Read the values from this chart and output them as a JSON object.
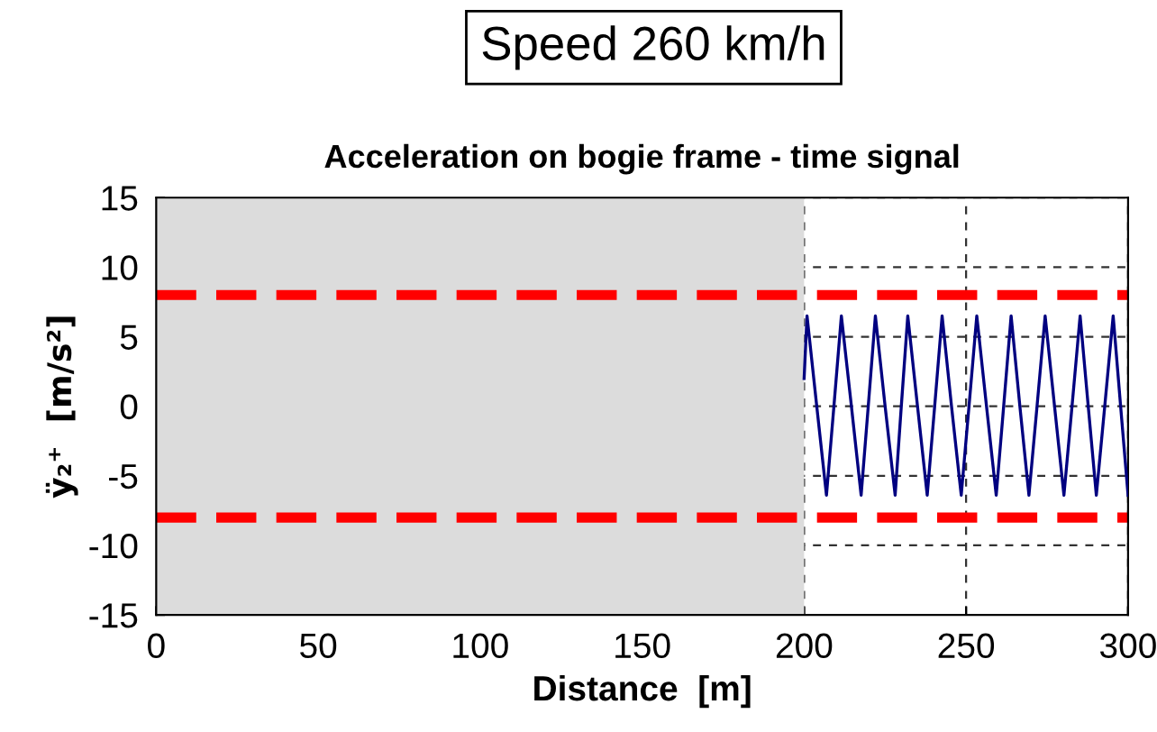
{
  "chart_data": {
    "type": "line",
    "subtitle": "Speed 260 km/h",
    "title": "Acceleration on bogie frame - time signal",
    "xlabel": "Distance  [m]",
    "ylabel": "ÿ₂⁺  [m/s²]",
    "series": [
      {
        "color": "#000080",
        "x": [
          200,
          200.9,
          203.9,
          206.9,
          209.2,
          211.5,
          214.6,
          217.6,
          219.8,
          222.0,
          225.0,
          228.1,
          230.0,
          232.0,
          235.0,
          238.0,
          240.3,
          242.6,
          245.5,
          248.5,
          250.9,
          253.3,
          256.3,
          259.3,
          261.6,
          263.9,
          266.6,
          269.4,
          271.9,
          274.4,
          277.3,
          280.2,
          282.7,
          285.2,
          287.7,
          290.2,
          292.8,
          295.4,
          297.7,
          300
        ],
        "values": [
          2.0,
          6.5,
          0,
          -6.4,
          0,
          6.5,
          0,
          -6.4,
          0,
          6.5,
          0,
          -6.4,
          0,
          6.5,
          0,
          -6.4,
          0,
          6.5,
          0,
          -6.4,
          0,
          6.5,
          0,
          -6.4,
          0,
          6.5,
          0,
          -6.4,
          0,
          6.5,
          0,
          -6.4,
          0,
          6.5,
          0,
          -6.4,
          0,
          6.5,
          0,
          -6.4
        ]
      }
    ],
    "xlim": [
      0,
      300
    ],
    "xticks": [
      0,
      50,
      100,
      150,
      200,
      250,
      300
    ],
    "ylim": [
      -15,
      15
    ],
    "yticks": [
      -15,
      -10,
      -5,
      0,
      5,
      10,
      15
    ],
    "grid": true,
    "legend": false,
    "marker": "none",
    "line_style": "solid",
    "ref_lines": [
      {
        "axis": "y",
        "value": 8,
        "color": "#ff0000",
        "line_style": "dashed"
      },
      {
        "axis": "y",
        "value": -8,
        "color": "#ff0000",
        "line_style": "dashed"
      }
    ],
    "bands": [
      {
        "axis": "x",
        "from": 0,
        "to": 200,
        "color": "#dcdcdc"
      }
    ]
  }
}
